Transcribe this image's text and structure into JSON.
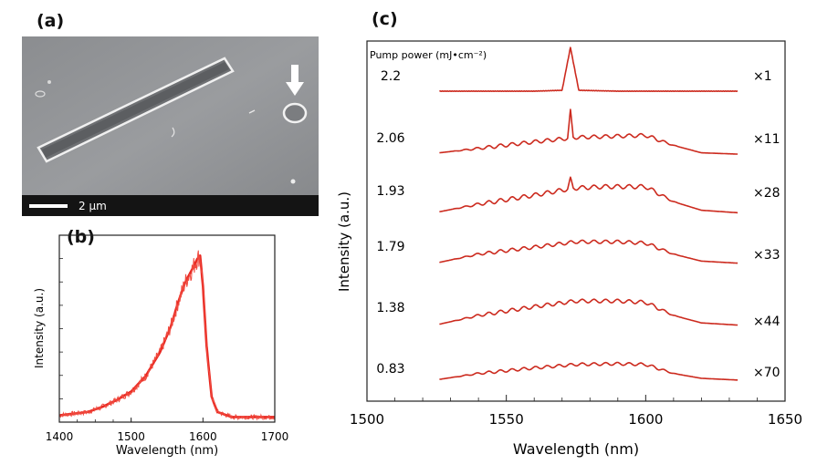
{
  "panels": {
    "a": {
      "label": "(a)",
      "scale_bar_label": "2 μm"
    },
    "b": {
      "label": "(b)"
    },
    "c": {
      "label": "(c)"
    }
  },
  "chart_data": [
    {
      "panel": "(b)",
      "type": "line",
      "xlabel": "Wavelength (nm)",
      "ylabel": "Intensity (a.u.)",
      "xlim": [
        1400,
        1700
      ],
      "xticks": [
        1400,
        1500,
        1600,
        1700
      ],
      "yticks_labeled": false,
      "ylim": [
        0,
        1.1
      ],
      "color": "#e8261f",
      "series": [
        {
          "x": [
            1400,
            1420,
            1440,
            1460,
            1480,
            1500,
            1520,
            1540,
            1555,
            1565,
            1575,
            1585,
            1592,
            1596,
            1600,
            1605,
            1612,
            1620,
            1640,
            1660,
            1680,
            1700
          ],
          "y": [
            0.04,
            0.05,
            0.06,
            0.09,
            0.13,
            0.18,
            0.27,
            0.41,
            0.56,
            0.7,
            0.82,
            0.9,
            0.96,
            0.98,
            0.8,
            0.45,
            0.15,
            0.06,
            0.03,
            0.03,
            0.03,
            0.03
          ]
        }
      ]
    },
    {
      "panel": "(c)",
      "type": "line",
      "xlabel": "Wavelength (nm)",
      "ylabel": "Intensity (a.u.)",
      "xlim": [
        1500,
        1650
      ],
      "xticks": [
        1500,
        1550,
        1600,
        1650
      ],
      "yticks_labeled": false,
      "color": "#cc2a1e",
      "legend_title": "Pump power (mJ•cm⁻²)",
      "series": [
        {
          "name": "2.2",
          "multiplier": "×1",
          "lasing_peak_nm": 1573,
          "x": [
            1526,
            1560,
            1570,
            1573,
            1576,
            1590,
            1633
          ],
          "y": [
            0.0,
            0.0,
            0.02,
            1.0,
            0.02,
            0.0,
            0.0
          ]
        },
        {
          "name": "2.06",
          "multiplier": "×11",
          "lasing_peak_nm": 1573,
          "x": [
            1526,
            1540,
            1560,
            1572,
            1573,
            1574,
            1585,
            1600,
            1610,
            1620,
            1633
          ],
          "y": [
            0.05,
            0.15,
            0.3,
            0.38,
            1.0,
            0.4,
            0.42,
            0.45,
            0.22,
            0.05,
            0.02
          ]
        },
        {
          "name": "1.93",
          "multiplier": "×28",
          "lasing_peak_nm": 1573,
          "x": [
            1526,
            1540,
            1560,
            1572,
            1573,
            1574,
            1585,
            1600,
            1610,
            1620,
            1633
          ],
          "y": [
            0.05,
            0.2,
            0.38,
            0.5,
            0.7,
            0.52,
            0.55,
            0.55,
            0.25,
            0.08,
            0.03
          ]
        },
        {
          "name": "1.79",
          "multiplier": "×33",
          "x": [
            1526,
            1540,
            1560,
            1575,
            1590,
            1600,
            1610,
            1620,
            1633
          ],
          "y": [
            0.05,
            0.25,
            0.42,
            0.55,
            0.55,
            0.52,
            0.25,
            0.08,
            0.03
          ]
        },
        {
          "name": "1.38",
          "multiplier": "×44",
          "x": [
            1526,
            1540,
            1560,
            1575,
            1590,
            1600,
            1610,
            1620,
            1633
          ],
          "y": [
            0.05,
            0.25,
            0.45,
            0.58,
            0.58,
            0.55,
            0.25,
            0.08,
            0.03
          ]
        },
        {
          "name": "0.83",
          "multiplier": "×70",
          "x": [
            1526,
            1540,
            1560,
            1575,
            1590,
            1600,
            1610,
            1620,
            1633
          ],
          "y": [
            0.05,
            0.22,
            0.38,
            0.48,
            0.5,
            0.48,
            0.22,
            0.08,
            0.03
          ]
        }
      ]
    }
  ]
}
